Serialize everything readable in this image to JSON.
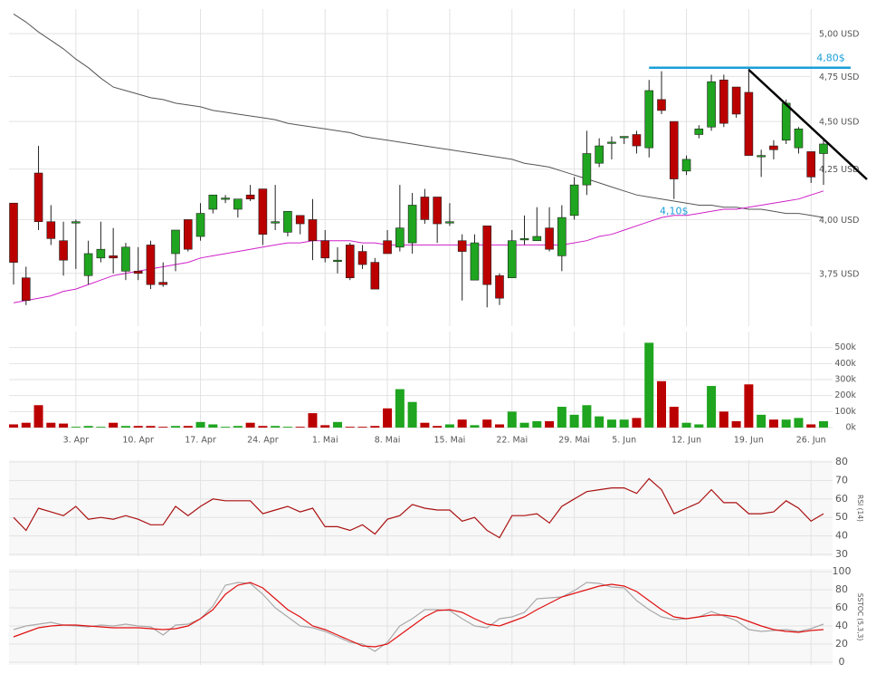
{
  "chart_data": [
    {
      "type": "candlestick",
      "log_scale": true,
      "grid": true,
      "up_color": "#1fa51f",
      "down_color": "#bb0000",
      "categories": [
        null,
        null,
        null,
        null,
        null,
        "3. Apr",
        null,
        null,
        null,
        null,
        "10. Apr",
        null,
        null,
        null,
        null,
        "17. Apr",
        null,
        null,
        null,
        null,
        "24. Apr",
        null,
        null,
        null,
        null,
        "1. Mai",
        null,
        null,
        null,
        null,
        "8. Mai",
        null,
        null,
        null,
        null,
        "15. Mai",
        null,
        null,
        null,
        null,
        "22. Mai",
        null,
        null,
        null,
        null,
        "29. Mai",
        null,
        null,
        null,
        "5. Jun",
        null,
        null,
        null,
        null,
        "12. Jun",
        null,
        null,
        null,
        null,
        "19. Jun",
        null,
        null,
        null,
        null,
        "26. Jun",
        null
      ],
      "open": [
        4.08,
        3.73,
        4.23,
        3.99,
        3.9,
        3.985,
        3.74,
        3.82,
        3.83,
        3.76,
        3.76,
        3.88,
        3.71,
        3.84,
        4.0,
        3.92,
        4.05,
        4.1,
        4.05,
        4.12,
        4.15,
        3.99,
        3.94,
        4.02,
        4.0,
        3.9,
        3.81,
        3.88,
        3.85,
        3.8,
        3.9,
        3.87,
        3.89,
        4.11,
        4.11,
        3.99,
        3.9,
        3.72,
        3.97,
        3.74,
        3.73,
        3.91,
        3.9,
        3.96,
        3.83,
        4.02,
        4.17,
        4.28,
        4.39,
        4.42,
        4.43,
        4.36,
        4.62,
        4.5,
        4.24,
        4.43,
        4.47,
        4.73,
        4.69,
        4.66,
        4.32,
        4.37,
        4.4,
        4.36,
        4.34,
        4.33
      ],
      "high": [
        4.08,
        3.78,
        4.37,
        4.07,
        3.99,
        4.0,
        3.9,
        3.99,
        3.96,
        3.89,
        3.87,
        3.9,
        3.8,
        3.95,
        4.0,
        4.08,
        4.12,
        4.12,
        4.1,
        4.17,
        4.15,
        4.17,
        4.04,
        4.02,
        4.1,
        3.95,
        3.87,
        3.89,
        3.88,
        3.82,
        3.95,
        4.17,
        4.13,
        4.15,
        4.11,
        4.08,
        3.93,
        3.93,
        3.97,
        3.75,
        3.95,
        4.02,
        4.06,
        4.06,
        4.07,
        4.21,
        4.45,
        4.41,
        4.42,
        4.42,
        4.45,
        4.73,
        4.78,
        4.5,
        4.32,
        4.48,
        4.76,
        4.76,
        4.69,
        4.8,
        4.35,
        4.4,
        4.62,
        4.47,
        4.34,
        4.41
      ],
      "low": [
        3.7,
        3.61,
        3.95,
        3.88,
        3.74,
        3.77,
        3.7,
        3.8,
        3.75,
        3.72,
        3.72,
        3.68,
        3.69,
        3.76,
        3.85,
        3.9,
        4.03,
        4.08,
        4.01,
        4.09,
        3.88,
        3.95,
        3.92,
        3.93,
        3.81,
        3.8,
        3.75,
        3.72,
        3.77,
        3.68,
        3.84,
        3.85,
        3.84,
        3.98,
        3.89,
        3.97,
        3.63,
        3.72,
        3.6,
        3.61,
        3.73,
        3.88,
        3.9,
        3.85,
        3.76,
        4.0,
        4.12,
        4.26,
        4.3,
        4.38,
        4.33,
        4.31,
        4.54,
        4.1,
        4.22,
        4.41,
        4.45,
        4.47,
        4.52,
        4.32,
        4.21,
        4.3,
        4.38,
        4.33,
        4.18,
        4.17
      ],
      "close": [
        3.8,
        3.63,
        3.99,
        3.91,
        3.81,
        3.99,
        3.84,
        3.86,
        3.82,
        3.87,
        3.75,
        3.7,
        3.7,
        3.95,
        3.86,
        4.03,
        4.12,
        4.105,
        4.1,
        4.1,
        3.93,
        3.99,
        4.04,
        3.98,
        3.9,
        3.82,
        3.81,
        3.73,
        3.79,
        3.68,
        3.84,
        3.96,
        4.07,
        4.0,
        3.98,
        3.99,
        3.85,
        3.89,
        3.7,
        3.64,
        3.9,
        3.91,
        3.92,
        3.86,
        4.01,
        4.17,
        4.33,
        4.37,
        4.39,
        4.42,
        4.37,
        4.67,
        4.56,
        4.2,
        4.3,
        4.46,
        4.72,
        4.49,
        4.54,
        4.32,
        4.32,
        4.35,
        4.6,
        4.46,
        4.21,
        4.38
      ],
      "series": [
        {
          "color": "#555555",
          "values": [
            5.12,
            5.07,
            5.01,
            4.96,
            4.91,
            4.85,
            4.8,
            4.74,
            4.69,
            4.67,
            4.65,
            4.63,
            4.62,
            4.6,
            4.59,
            4.58,
            4.56,
            4.55,
            4.54,
            4.53,
            4.52,
            4.51,
            4.49,
            4.48,
            4.47,
            4.46,
            4.45,
            4.44,
            4.42,
            4.41,
            4.4,
            4.39,
            4.38,
            4.37,
            4.36,
            4.35,
            4.34,
            4.33,
            4.32,
            4.31,
            4.3,
            4.28,
            4.27,
            4.26,
            4.24,
            4.22,
            4.2,
            4.18,
            4.16,
            4.14,
            4.12,
            4.11,
            4.1,
            4.09,
            4.08,
            4.07,
            4.07,
            4.06,
            4.06,
            4.05,
            4.05,
            4.04,
            4.03,
            4.03,
            4.02,
            4.01
          ]
        },
        {
          "color": "#d020c8",
          "values": [
            3.62,
            3.63,
            3.64,
            3.65,
            3.67,
            3.68,
            3.7,
            3.72,
            3.74,
            3.75,
            3.76,
            3.77,
            3.78,
            3.79,
            3.8,
            3.82,
            3.83,
            3.84,
            3.85,
            3.86,
            3.87,
            3.88,
            3.89,
            3.89,
            3.9,
            3.9,
            3.9,
            3.9,
            3.89,
            3.89,
            3.88,
            3.88,
            3.88,
            3.88,
            3.88,
            3.88,
            3.88,
            3.88,
            3.88,
            3.88,
            3.88,
            3.88,
            3.88,
            3.88,
            3.88,
            3.89,
            3.9,
            3.92,
            3.93,
            3.95,
            3.97,
            3.99,
            4.01,
            4.02,
            4.02,
            4.03,
            4.04,
            4.05,
            4.05,
            4.06,
            4.07,
            4.08,
            4.09,
            4.1,
            4.12,
            4.14
          ]
        }
      ],
      "annotations": [
        {
          "value": 4.8,
          "label": "4,80$",
          "color": "#1a9ed9"
        },
        {
          "value": 4.1,
          "label": "4,10$",
          "color": "#1a9ed9"
        }
      ],
      "ylim": [
        3.52,
        5.15
      ],
      "yticks": [
        {
          "value": 3.75,
          "label": "3,75 USD"
        },
        {
          "value": 4,
          "label": "4,00 USD"
        },
        {
          "value": 4.25,
          "label": "4,25 USD"
        },
        {
          "value": 4.5,
          "label": "4,50 USD"
        },
        {
          "value": 4.75,
          "label": "4,75 USD"
        },
        {
          "value": 5,
          "label": "5,00 USD"
        }
      ]
    },
    {
      "type": "bar",
      "grid": true,
      "values": [
        20000,
        30000,
        140000,
        30000,
        25000,
        5000,
        10000,
        5000,
        30000,
        10000,
        10000,
        10000,
        5000,
        10000,
        10000,
        35000,
        20000,
        5000,
        10000,
        30000,
        10000,
        10000,
        5000,
        5000,
        90000,
        15000,
        35000,
        5000,
        5000,
        10000,
        120000,
        240000,
        160000,
        30000,
        10000,
        20000,
        50000,
        15000,
        50000,
        20000,
        100000,
        30000,
        40000,
        40000,
        130000,
        80000,
        140000,
        70000,
        50000,
        50000,
        60000,
        530000,
        290000,
        130000,
        30000,
        20000,
        260000,
        100000,
        40000,
        270000,
        80000,
        50000,
        50000,
        60000,
        20000,
        40000
      ],
      "ylim": [
        0,
        600000
      ],
      "yticks": [
        {
          "value": 0,
          "label": "0k"
        },
        {
          "value": 100000,
          "label": "100k"
        },
        {
          "value": 200000,
          "label": "200k"
        },
        {
          "value": 300000,
          "label": "300k"
        },
        {
          "value": 400000,
          "label": "400k"
        },
        {
          "value": 500000,
          "label": "500k"
        }
      ]
    },
    {
      "type": "line",
      "label": "RSI (14)",
      "grid": true,
      "series": [
        {
          "color": "#aa1111",
          "values": [
            50,
            43,
            55,
            53,
            51,
            56,
            49,
            50,
            49,
            51,
            49,
            46,
            46,
            56,
            51,
            56,
            60,
            59,
            59,
            59,
            52,
            54,
            56,
            53,
            55,
            45,
            45,
            43,
            46,
            41,
            49,
            51,
            57,
            55,
            54,
            54,
            48,
            50,
            43,
            39,
            51,
            51,
            52,
            47,
            56,
            60,
            64,
            65,
            66,
            66,
            63,
            71,
            65,
            52,
            55,
            58,
            65,
            58,
            58,
            52,
            52,
            53,
            59,
            55,
            48,
            52
          ]
        }
      ],
      "ylim": [
        29,
        81
      ],
      "yticks": [
        30,
        40,
        50,
        60,
        70,
        80
      ]
    },
    {
      "type": "line",
      "label": "SSTOC (5,3,3)",
      "grid": true,
      "series": [
        {
          "color": "#aaaaaa",
          "values": [
            36,
            40,
            42,
            44,
            41,
            40,
            39,
            41,
            40,
            42,
            40,
            39,
            30,
            41,
            42,
            48,
            62,
            85,
            88,
            87,
            75,
            60,
            50,
            40,
            38,
            34,
            28,
            22,
            20,
            12,
            22,
            40,
            48,
            58,
            58,
            57,
            48,
            40,
            38,
            48,
            50,
            55,
            70,
            71,
            72,
            79,
            88,
            87,
            83,
            82,
            68,
            58,
            50,
            47,
            48,
            50,
            56,
            51,
            46,
            36,
            34,
            35,
            36,
            34,
            37,
            42
          ]
        },
        {
          "color": "#e01010",
          "values": [
            28,
            33,
            38,
            40,
            41,
            41,
            40,
            39,
            38,
            38,
            38,
            37,
            36,
            37,
            40,
            48,
            58,
            75,
            85,
            88,
            82,
            70,
            58,
            50,
            40,
            36,
            30,
            24,
            18,
            17,
            20,
            30,
            40,
            50,
            57,
            58,
            55,
            48,
            42,
            40,
            45,
            50,
            58,
            65,
            72,
            76,
            80,
            84,
            86,
            84,
            78,
            68,
            58,
            50,
            48,
            50,
            52,
            52,
            50,
            45,
            40,
            36,
            34,
            33,
            35,
            36
          ]
        }
      ],
      "ylim": [
        -3,
        103
      ],
      "yticks": [
        0,
        20,
        40,
        60,
        80,
        100
      ]
    }
  ]
}
